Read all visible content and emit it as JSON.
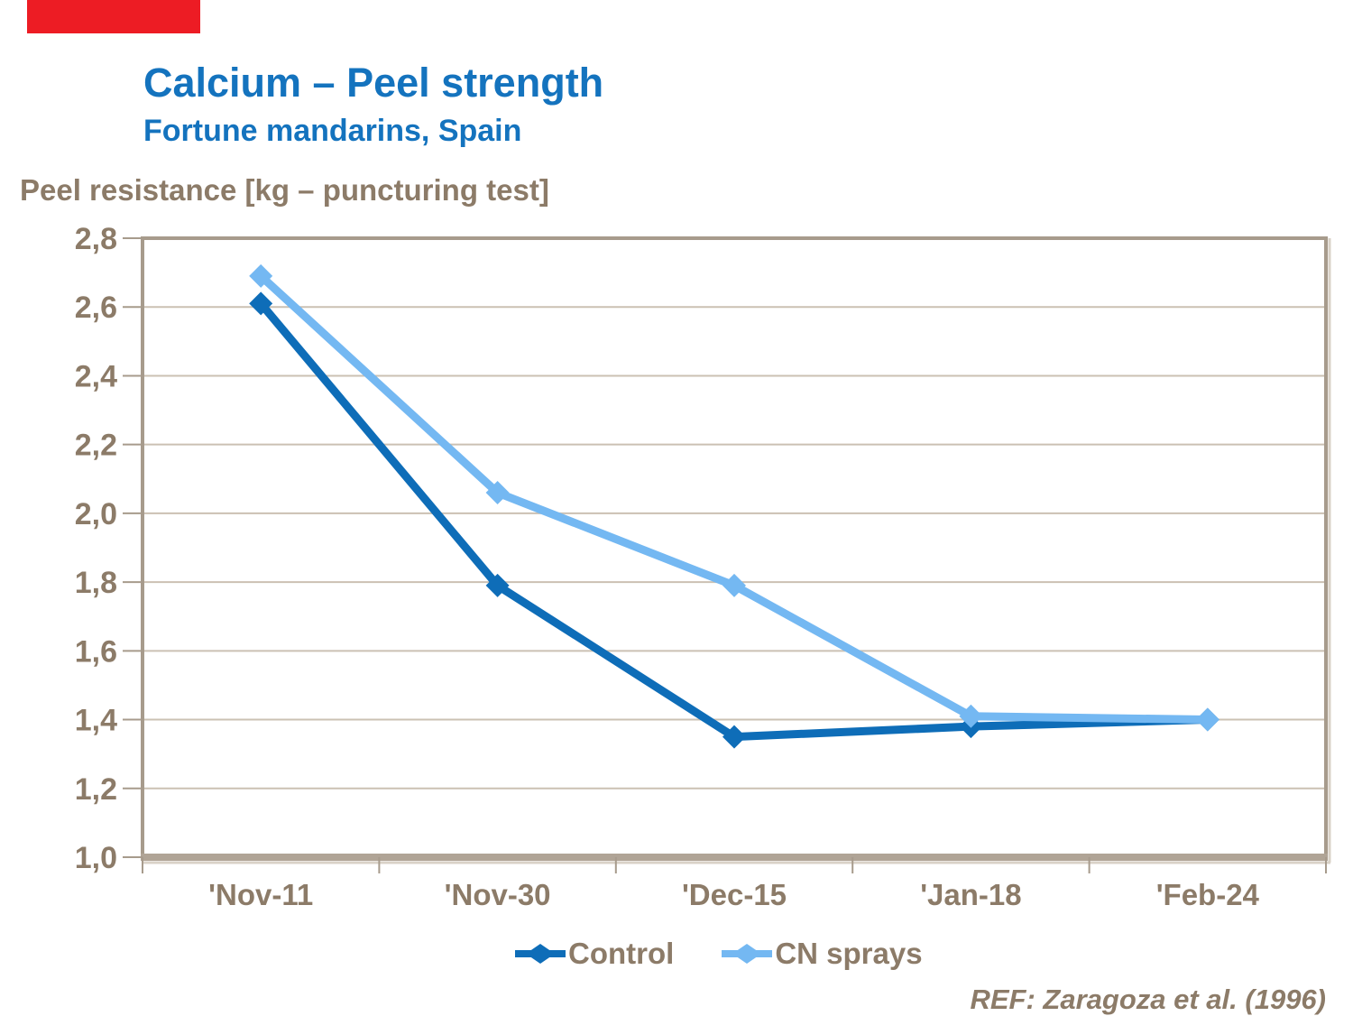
{
  "slide": {
    "title": "Calcium – Peel strength",
    "subtitle": "Fortune mandarins, Spain",
    "axis_title": "Peel resistance [kg – puncturing test]",
    "reference": "REF: Zaragoza et al. (1996)"
  },
  "colors": {
    "title_blue": "#1473be",
    "text_brown": "#8c7b68",
    "gridline": "#cbc1b3",
    "frame": "#a79b8c",
    "frame_highlight": "#d9d2c7",
    "axis_bottom": "#b0a496",
    "red_bar": "#ed1c24",
    "background": "#ffffff"
  },
  "chart_data": {
    "type": "line",
    "categories": [
      "'Nov-11",
      "'Nov-30",
      "'Dec-15",
      "'Jan-18",
      "'Feb-24"
    ],
    "series": [
      {
        "name": "Control",
        "color": "#0e6db8",
        "values": [
          2.61,
          1.79,
          1.35,
          1.38,
          1.4
        ]
      },
      {
        "name": "CN sprays",
        "color": "#74b8f2",
        "values": [
          2.69,
          2.06,
          1.79,
          1.41,
          1.4
        ]
      }
    ],
    "title": "",
    "xlabel": "",
    "ylabel": "Peel resistance [kg – puncturing test]",
    "ylim": [
      1.0,
      2.8
    ],
    "ytick_step": 0.2,
    "ytick_labels": [
      "2,8",
      "2,6",
      "2,4",
      "2,2",
      "2,0",
      "1,8",
      "1,6",
      "1,4",
      "1,2",
      "1,0"
    ],
    "grid": true,
    "legend_position": "bottom",
    "marker": "diamond"
  }
}
